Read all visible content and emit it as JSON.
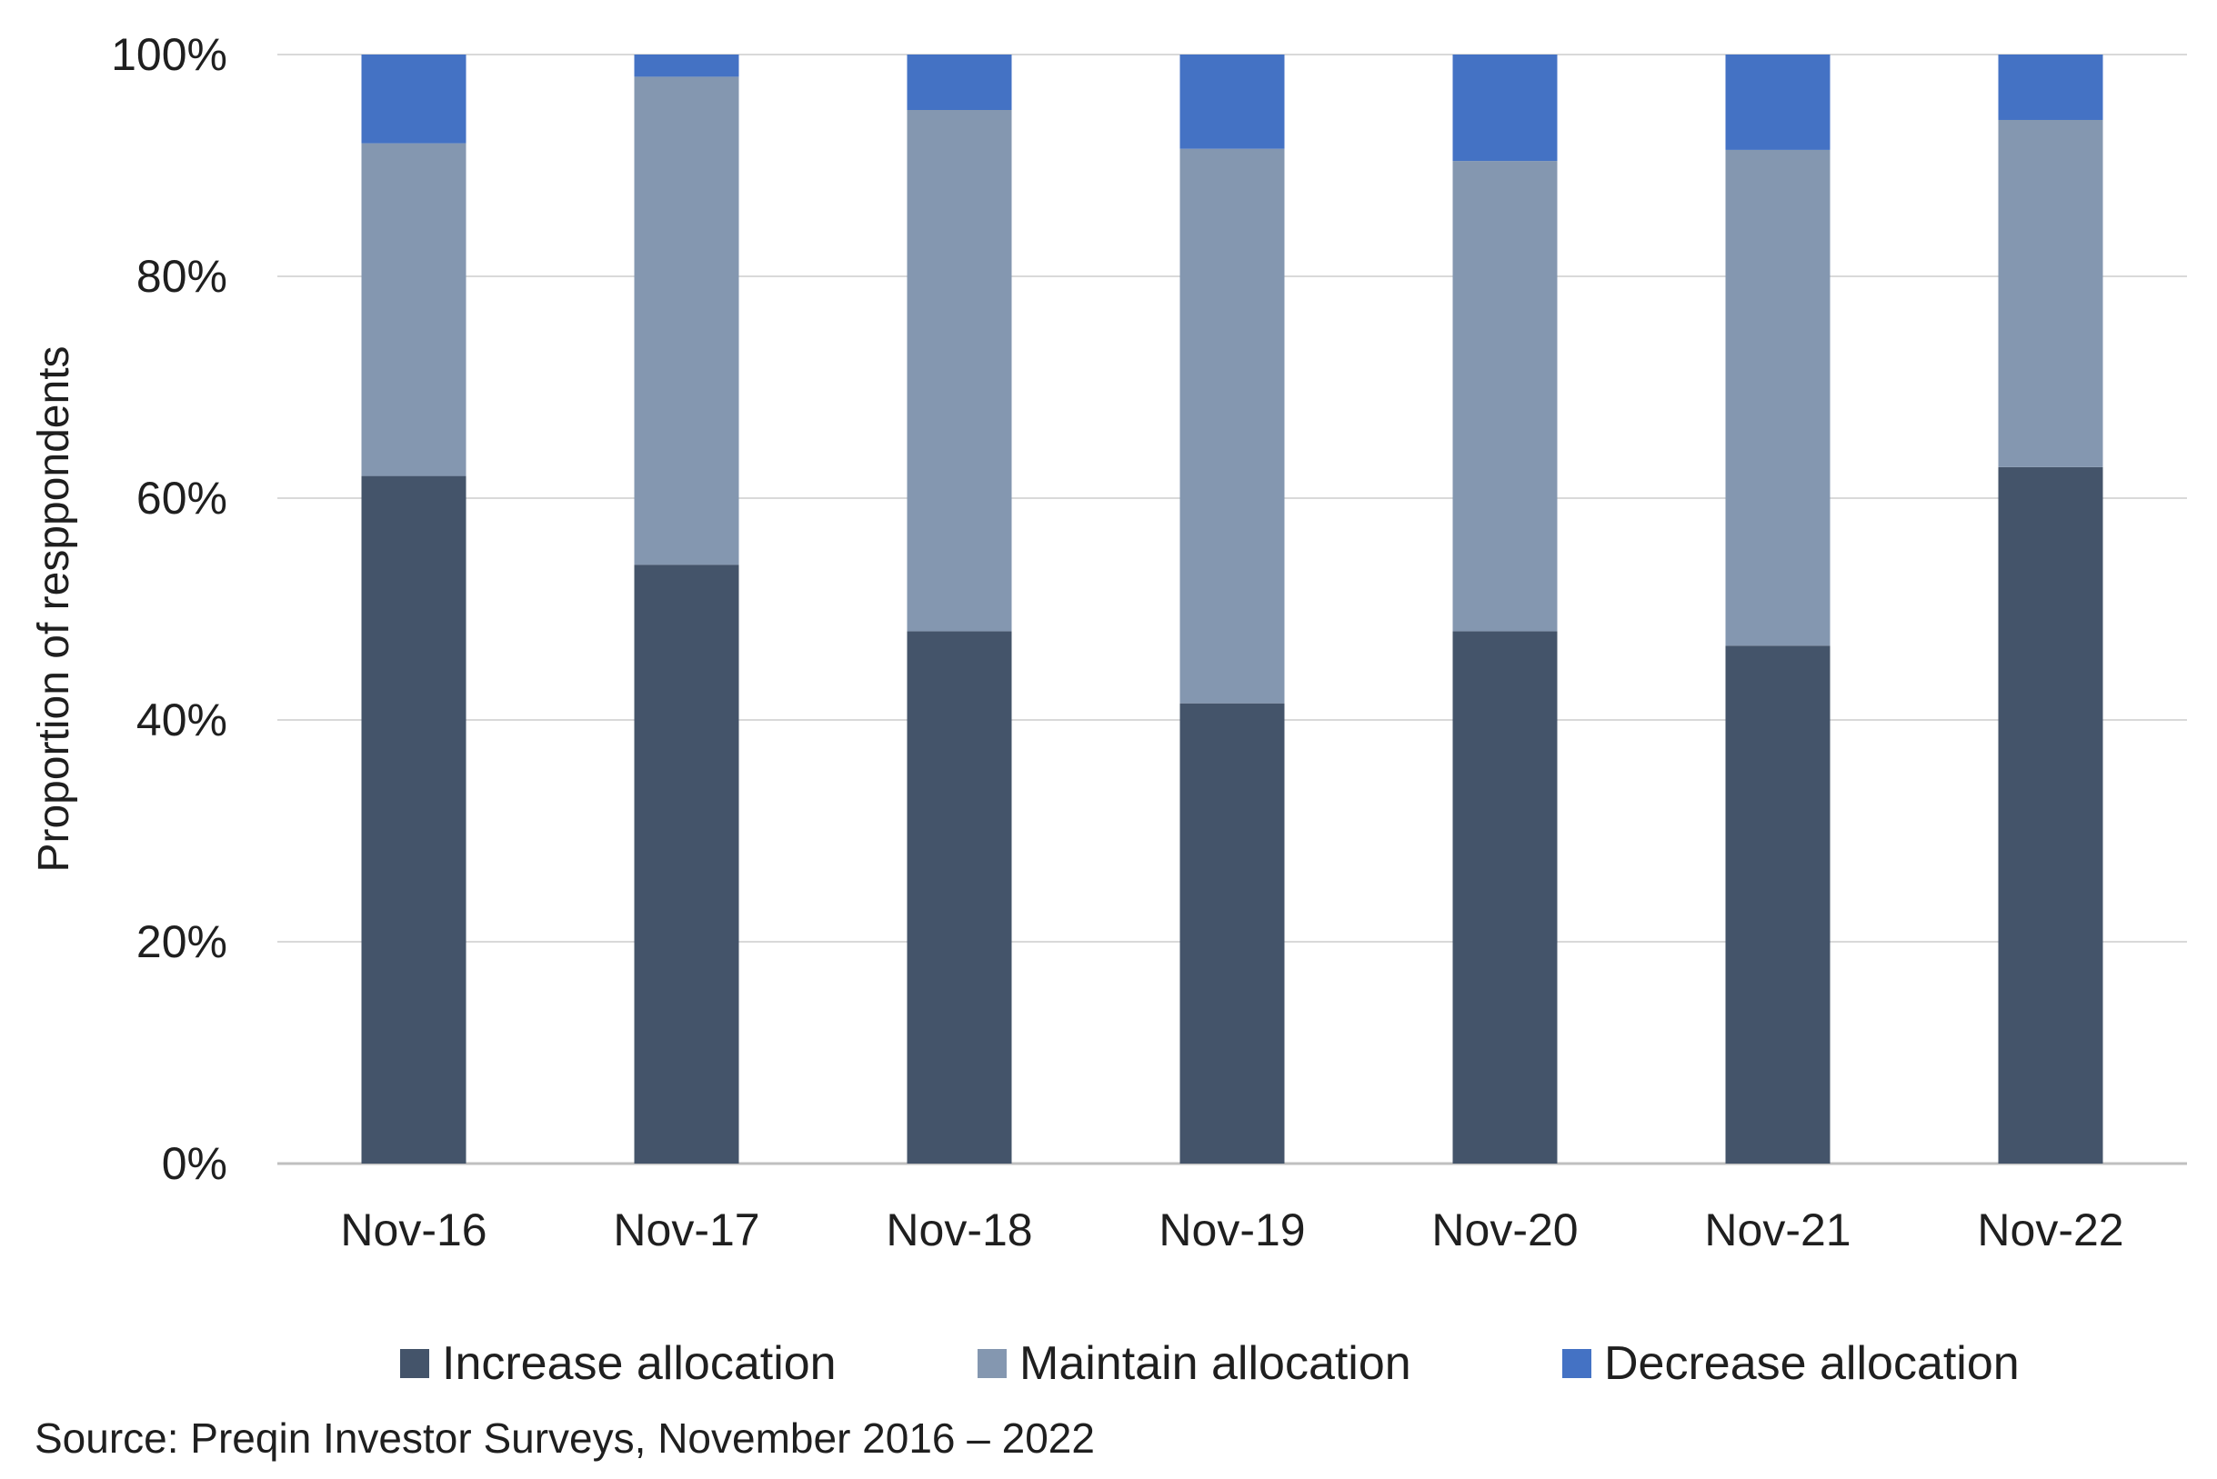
{
  "chart_data": {
    "type": "bar",
    "stacked": true,
    "categories": [
      "Nov-16",
      "Nov-17",
      "Nov-18",
      "Nov-19",
      "Nov-20",
      "Nov-21",
      "Nov-22"
    ],
    "series": [
      {
        "name": "Increase allocation",
        "color": "#44546A",
        "values": [
          62,
          54,
          48,
          41.5,
          48,
          46.7,
          62.8
        ]
      },
      {
        "name": "Maintain allocation",
        "color": "#8497B0",
        "values": [
          30,
          44,
          47,
          50,
          42.4,
          44.7,
          31.3
        ]
      },
      {
        "name": "Decrease allocation",
        "color": "#4472C4",
        "values": [
          8,
          2,
          5,
          8.5,
          9.6,
          8.6,
          5.9
        ]
      }
    ],
    "ylabel": "Proportion of resppondents",
    "xlabel": "",
    "ylim": [
      0,
      100
    ],
    "yticks": [
      "0%",
      "20%",
      "40%",
      "60%",
      "80%",
      "100%"
    ],
    "grid": true,
    "legend_position": "bottom"
  },
  "source_note": "Source: Preqin Investor Surveys, November 2016 – 2022"
}
